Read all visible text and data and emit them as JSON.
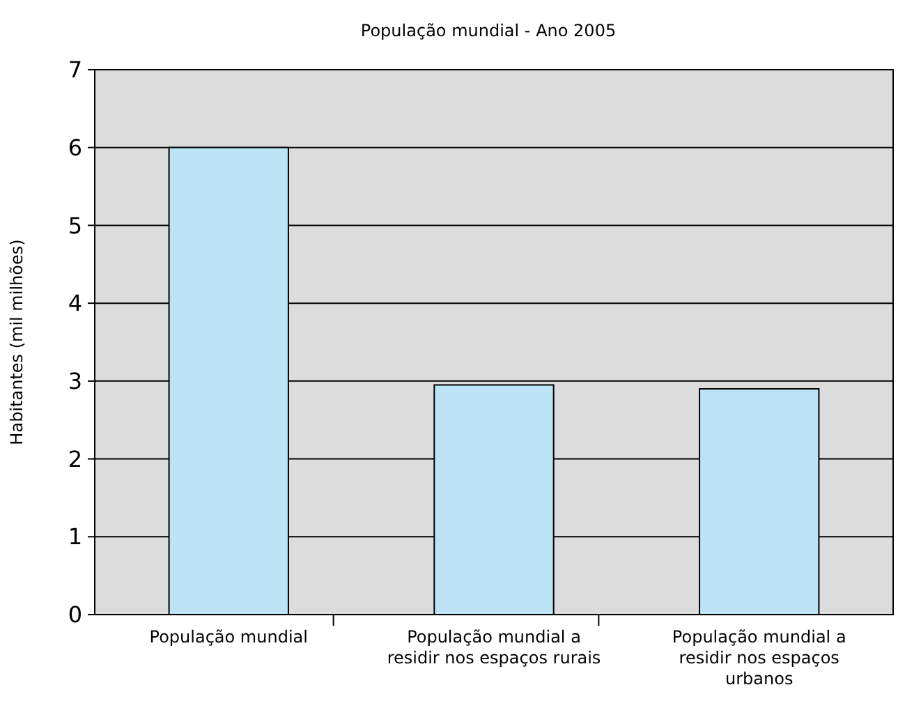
{
  "chart_data": {
    "type": "bar",
    "title": "População mundial -  Ano 2005",
    "ylabel": "Habitantes (mil milhões)",
    "categories": [
      "População mundial",
      "População mundial a residir nos espaços rurais",
      "População mundial a residir nos espaços urbanos"
    ],
    "values": [
      6.0,
      2.95,
      2.9
    ],
    "color": "#bde3f7",
    "ylim": [
      0,
      7
    ],
    "yticks": [
      0,
      1,
      2,
      3,
      4,
      5,
      6,
      7
    ],
    "grid": "y"
  }
}
